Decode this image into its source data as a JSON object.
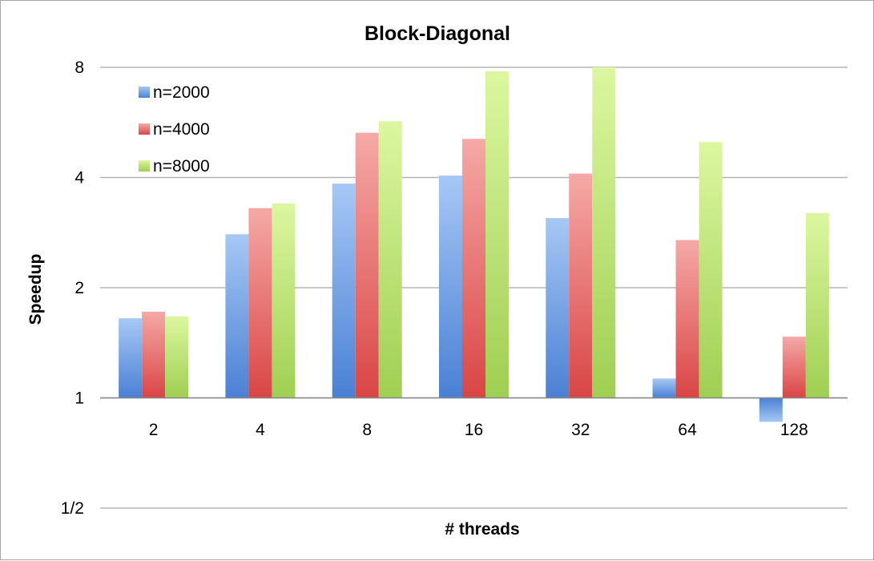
{
  "chart_data": {
    "type": "bar",
    "title": "Block-Diagonal",
    "xlabel": "# threads",
    "ylabel": "Speedup",
    "y_scale": "log2",
    "ylim": [
      0.5,
      8
    ],
    "y_ticks": [
      {
        "value": 0.5,
        "label": "1/2"
      },
      {
        "value": 1,
        "label": "1"
      },
      {
        "value": 2,
        "label": "2"
      },
      {
        "value": 4,
        "label": "4"
      },
      {
        "value": 8,
        "label": "8"
      }
    ],
    "bar_base": 1,
    "categories": [
      "2",
      "4",
      "8",
      "16",
      "32",
      "64",
      "128"
    ],
    "grid": true,
    "legend_position": "top-left",
    "series": [
      {
        "name": "n=2000",
        "color": "#5b8fd8",
        "values": [
          1.65,
          2.8,
          3.85,
          4.05,
          3.1,
          1.13,
          0.86
        ]
      },
      {
        "name": "n=4000",
        "color": "#e06060",
        "values": [
          1.72,
          3.3,
          5.3,
          5.1,
          4.1,
          2.7,
          1.47
        ]
      },
      {
        "name": "n=8000",
        "color": "#a6d55a",
        "values": [
          1.67,
          3.4,
          5.7,
          7.8,
          8.0,
          5.0,
          3.2
        ]
      }
    ]
  }
}
